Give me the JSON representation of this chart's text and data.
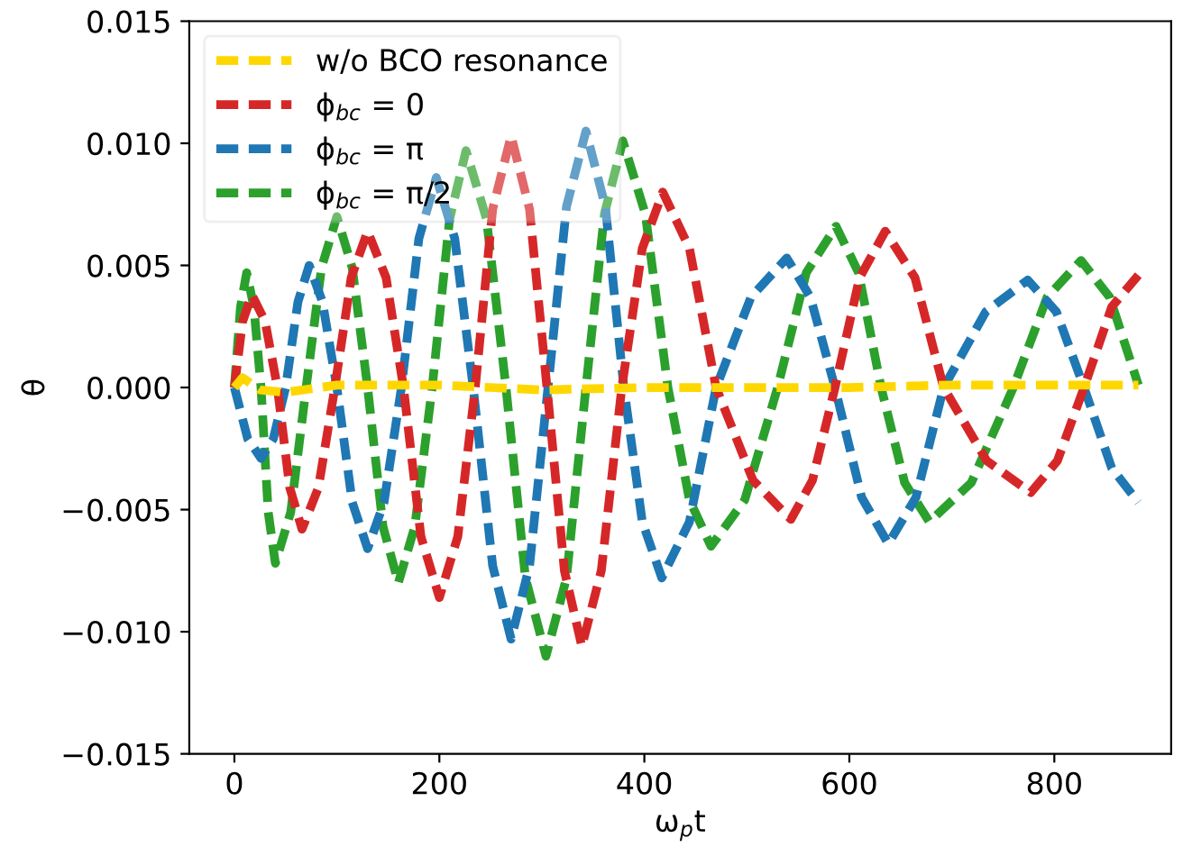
{
  "chart_data": {
    "type": "line",
    "xlabel": "ω$_{p}$t",
    "ylabel": "θ",
    "xlim": [
      -44,
      914
    ],
    "xticks": [
      0,
      200,
      400,
      600,
      800
    ],
    "ylim": [
      -0.015,
      0.015
    ],
    "yticks": [
      {
        "value": -0.015,
        "label": "−0.015"
      },
      {
        "value": -0.01,
        "label": "−0.010"
      },
      {
        "value": -0.005,
        "label": "−0.005"
      },
      {
        "value": 0,
        "label": "0.000"
      },
      {
        "value": 0.005,
        "label": "0.005"
      },
      {
        "value": 0.01,
        "label": "0.010"
      },
      {
        "value": 0.015,
        "label": "0.015"
      }
    ],
    "grid": false,
    "legend": "top left",
    "marker": "none",
    "line_style": "dashed",
    "series": [
      {
        "name": "w/o BCO resonance",
        "color": "#ffd700",
        "x": [
          0,
          8,
          25,
          50,
          100,
          200,
          300,
          400,
          500,
          600,
          700,
          800,
          882
        ],
        "values": [
          0,
          0.0004,
          -0.0001,
          -0.0002,
          0.0001,
          0.0001,
          -0.0001,
          0,
          0,
          0,
          0.0001,
          0.0001,
          0.0001
        ]
      },
      {
        "name": "ϕ$_{bc}$ = 0",
        "color": "#d62728",
        "x": [
          0,
          8,
          17,
          30,
          42,
          54,
          66,
          82,
          98,
          114,
          130,
          148,
          165,
          182,
          200,
          218,
          235,
          252,
          270,
          288,
          305,
          322,
          339,
          358,
          378,
          398,
          418,
          444,
          470,
          506,
          543,
          564,
          586,
          610,
          635,
          664,
          692,
          734,
          777,
          803,
          829,
          856,
          882
        ],
        "values": [
          0,
          0.0027,
          0.0038,
          0.0027,
          0,
          -0.0041,
          -0.0058,
          -0.0041,
          0,
          0.0045,
          0.0064,
          0.0045,
          0,
          -0.0061,
          -0.0086,
          -0.0061,
          0,
          0.0073,
          0.0103,
          0.0073,
          0,
          -0.0075,
          -0.0106,
          -0.0075,
          0,
          0.0057,
          0.008,
          0.0057,
          0,
          -0.0038,
          -0.0054,
          -0.0038,
          0,
          0.0045,
          0.0064,
          0.0045,
          0,
          -0.003,
          -0.0043,
          -0.003,
          0,
          0.0033,
          0.0046
        ]
      },
      {
        "name": "ϕ$_{bc}$ = π",
        "color": "#1f77b4",
        "x": [
          0,
          13,
          26,
          38,
          50,
          62,
          73,
          86,
          100,
          115,
          130,
          146,
          163,
          180,
          197,
          215,
          233,
          252,
          270,
          288,
          306,
          324,
          343,
          362,
          380,
          398,
          417,
          444,
          470,
          504,
          539,
          562,
          586,
          612,
          638,
          665,
          692,
          733,
          774,
          802,
          829,
          856,
          882
        ],
        "values": [
          0,
          -0.0021,
          -0.0029,
          -0.0021,
          0,
          0.0035,
          0.005,
          0.0035,
          0,
          -0.0047,
          -0.0066,
          -0.0047,
          0,
          0.0061,
          0.0086,
          0.0061,
          0,
          -0.0073,
          -0.0103,
          -0.0073,
          0,
          0.0074,
          0.0105,
          0.0074,
          0,
          -0.0055,
          -0.0078,
          -0.0055,
          0,
          0.0037,
          0.0053,
          0.0037,
          0,
          -0.0045,
          -0.0064,
          -0.0045,
          0,
          0.0031,
          0.0044,
          0.0031,
          0,
          -0.0033,
          -0.0047
        ]
      },
      {
        "name": "ϕ$_{bc}$ = π/2",
        "color": "#2ca02c",
        "x": [
          0,
          6,
          12,
          19,
          26,
          33,
          40,
          55,
          70,
          85,
          100,
          115,
          130,
          145,
          160,
          176,
          193,
          210,
          226,
          246,
          265,
          284,
          304,
          324,
          343,
          361,
          379,
          401,
          423,
          444,
          465,
          498,
          530,
          558,
          587,
          609,
          631,
          654,
          678,
          719,
          760,
          793,
          826,
          854,
          882
        ],
        "values": [
          0,
          0.0033,
          0.0047,
          0.0033,
          0,
          -0.0051,
          -0.0072,
          -0.0051,
          0,
          0.0049,
          0.007,
          0.0049,
          0,
          -0.0057,
          -0.008,
          -0.0057,
          0,
          0.0069,
          0.0097,
          0.0069,
          0,
          -0.0078,
          -0.011,
          -0.0078,
          0,
          0.0071,
          0.0101,
          0.0071,
          0,
          -0.0046,
          -0.0065,
          -0.0046,
          0,
          0.0047,
          0.0066,
          0.0047,
          0,
          -0.0039,
          -0.0055,
          -0.0039,
          0,
          0.0037,
          0.0052,
          0.0037,
          0.0001
        ]
      }
    ]
  }
}
